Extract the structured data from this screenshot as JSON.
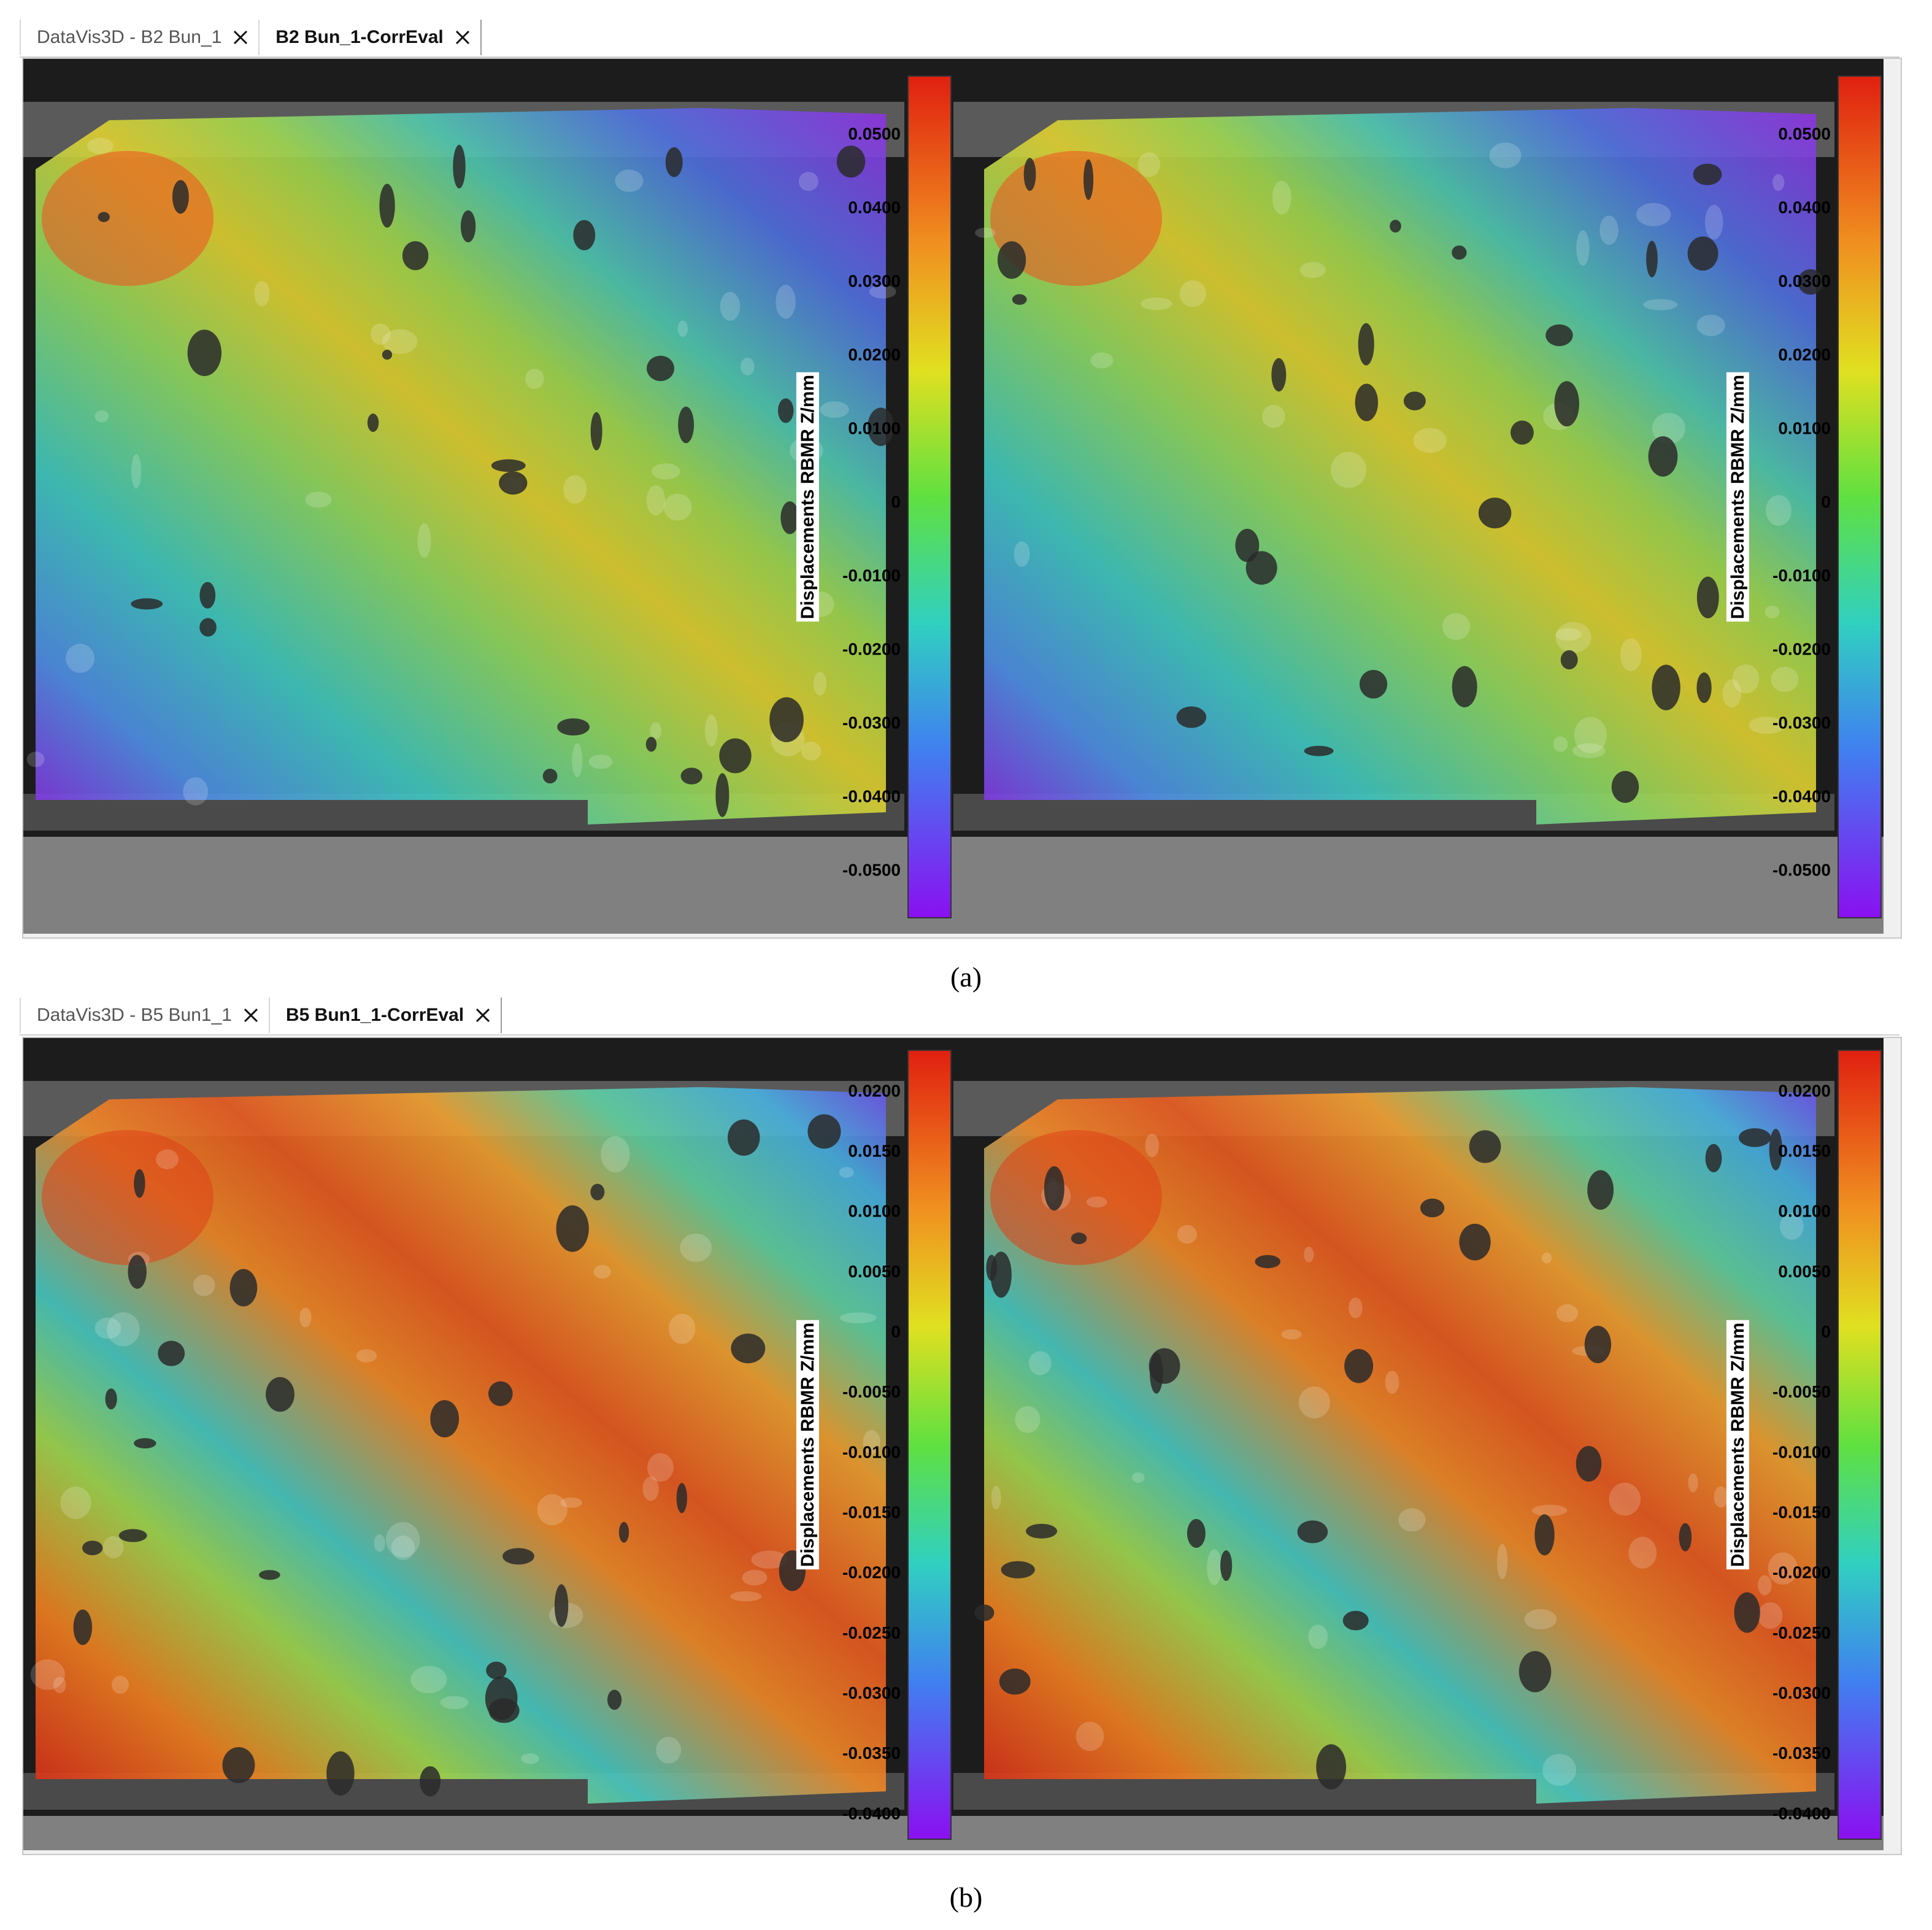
{
  "panels": [
    {
      "tabs": [
        "DataVis3D - B2 Bun_1",
        "B2 Bun_1-CorrEval"
      ],
      "active_tab": 1,
      "colorbar": {
        "label": "Displacements RBMR Z/mm",
        "ticks": [
          "0.0500",
          "0.0400",
          "0.0300",
          "0.0200",
          "0.0100",
          "0",
          "-0.0100",
          "-0.0200",
          "-0.0300",
          "-0.0400",
          "-0.0500"
        ]
      },
      "caption": "(a)"
    },
    {
      "tabs": [
        "DataVis3D - B5 Bun1_1",
        "B5 Bun1_1-CorrEval"
      ],
      "active_tab": 1,
      "colorbar": {
        "label": "Displacements RBMR Z/mm",
        "ticks": [
          "0.0200",
          "0.0150",
          "0.0100",
          "0.0050",
          "0",
          "-0.0050",
          "-0.0100",
          "-0.0150",
          "-0.0200",
          "-0.0250",
          "-0.0300",
          "-0.0350",
          "-0.0400"
        ]
      },
      "caption": "(b)"
    }
  ]
}
